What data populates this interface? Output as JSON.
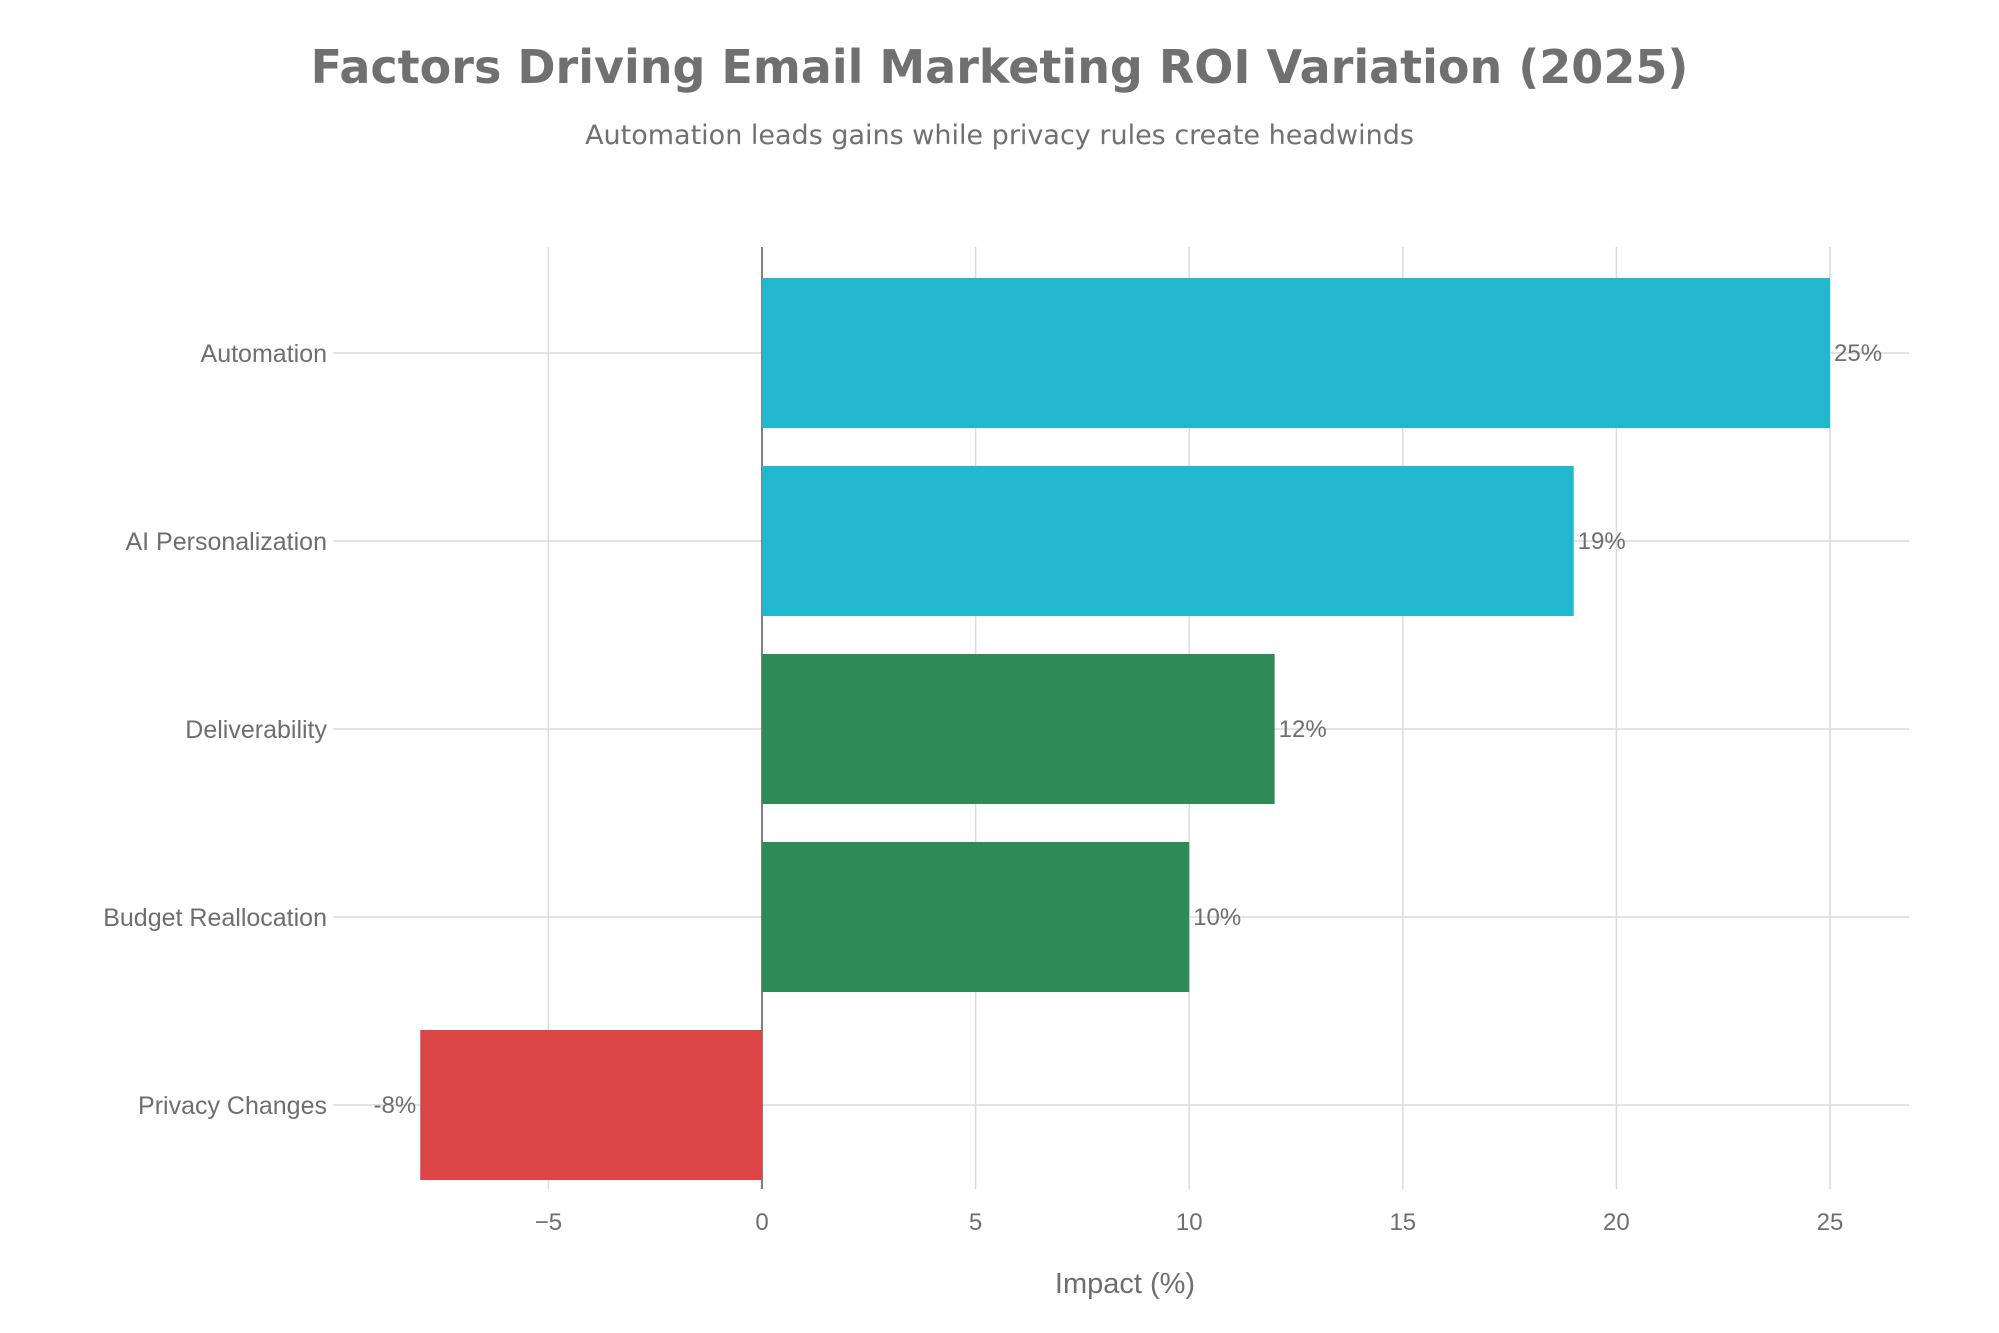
{
  "chart_data": {
    "type": "bar",
    "orientation": "horizontal",
    "title": "Factors Driving Email Marketing ROI Variation (2025)",
    "subtitle": "Automation leads gains while privacy rules create headwinds",
    "xlabel": "Impact (%)",
    "ylabel": "",
    "categories": [
      "Automation",
      "AI Personalization",
      "Deliverability",
      "Budget Reallocation",
      "Privacy Changes"
    ],
    "values": [
      25,
      19,
      12,
      10,
      -8
    ],
    "data_labels": [
      "25%",
      "19%",
      "12%",
      "10%",
      "-8%"
    ],
    "colors": [
      "#21B7CD",
      "#21B7CD",
      "#2E8B57",
      "#2E8B57",
      "#DB4545"
    ],
    "xlim": [
      -10,
      27
    ],
    "xticks": [
      -5,
      0,
      5,
      10,
      15,
      20,
      25
    ],
    "xtick_labels": [
      "−5",
      "0",
      "5",
      "10",
      "15",
      "20",
      "25"
    ],
    "grid": true,
    "legend": "none"
  }
}
